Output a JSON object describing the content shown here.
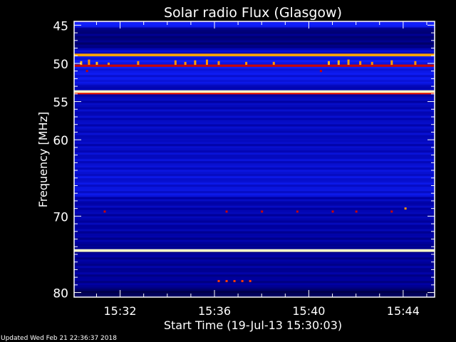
{
  "chart_data": {
    "type": "heatmap",
    "title": "Solar radio Flux (Glasgow)",
    "xlabel": "Start Time (19-Jul-13 15:30:03)",
    "ylabel": "Frequency [MHz]",
    "xlim": [
      "15:30:03",
      "15:45:20"
    ],
    "ylim": [
      80.6,
      44.5
    ],
    "x_ticks": [
      "15:32",
      "15:36",
      "15:40",
      "15:44"
    ],
    "y_ticks": [
      45,
      50,
      55,
      60,
      70,
      80
    ],
    "colormap": [
      "#000040",
      "#0000a0",
      "#1020ff",
      "#c00000",
      "#ff2000",
      "#ffa000",
      "#ffff60",
      "#ffffff"
    ],
    "background_levels": [
      {
        "from": 44.5,
        "to": 45.3,
        "level": 0.3
      },
      {
        "from": 45.3,
        "to": 48.0,
        "level": 0.12
      },
      {
        "from": 48.0,
        "to": 49.0,
        "level": 0.2
      },
      {
        "from": 49.0,
        "to": 52.3,
        "level": 0.22
      },
      {
        "from": 52.3,
        "to": 53.5,
        "level": 0.18
      },
      {
        "from": 53.5,
        "to": 60.0,
        "level": 0.16
      },
      {
        "from": 60.0,
        "to": 67.5,
        "level": 0.2
      },
      {
        "from": 67.5,
        "to": 74.0,
        "level": 0.14
      },
      {
        "from": 74.0,
        "to": 79.5,
        "level": 0.1
      },
      {
        "from": 79.5,
        "to": 80.6,
        "level": 0.05
      }
    ],
    "bands": [
      {
        "freq": 44.8,
        "width": 0.3,
        "level": 0.28
      },
      {
        "freq": 48.9,
        "width": 0.35,
        "level": 0.72
      },
      {
        "freq": 50.3,
        "width": 0.3,
        "level": 0.45
      },
      {
        "freq": 52.5,
        "width": 0.3,
        "level": 0.25
      },
      {
        "freq": 53.7,
        "width": 0.35,
        "level": 0.95
      },
      {
        "freq": 53.95,
        "width": 0.2,
        "level": 0.5
      },
      {
        "freq": 74.5,
        "width": 0.35,
        "level": 0.95
      }
    ],
    "bursts": [
      {
        "time": "15:30:20",
        "freq": 49.7,
        "level": 0.75
      },
      {
        "time": "15:30:40",
        "freq": 49.5,
        "level": 0.7
      },
      {
        "time": "15:31:00",
        "freq": 49.8,
        "level": 0.75
      },
      {
        "time": "15:31:30",
        "freq": 49.9,
        "level": 0.7
      },
      {
        "time": "15:32:45",
        "freq": 49.7,
        "level": 0.7
      },
      {
        "time": "15:34:20",
        "freq": 49.6,
        "level": 0.7
      },
      {
        "time": "15:34:45",
        "freq": 49.8,
        "level": 0.7
      },
      {
        "time": "15:35:10",
        "freq": 49.6,
        "level": 0.72
      },
      {
        "time": "15:35:40",
        "freq": 49.5,
        "level": 0.7
      },
      {
        "time": "15:36:10",
        "freq": 49.7,
        "level": 0.7
      },
      {
        "time": "15:37:20",
        "freq": 49.8,
        "level": 0.7
      },
      {
        "time": "15:38:30",
        "freq": 49.8,
        "level": 0.7
      },
      {
        "time": "15:40:50",
        "freq": 49.7,
        "level": 0.75
      },
      {
        "time": "15:41:15",
        "freq": 49.6,
        "level": 0.75
      },
      {
        "time": "15:41:40",
        "freq": 49.5,
        "level": 0.72
      },
      {
        "time": "15:42:10",
        "freq": 49.7,
        "level": 0.7
      },
      {
        "time": "15:42:40",
        "freq": 49.8,
        "level": 0.7
      },
      {
        "time": "15:43:30",
        "freq": 49.6,
        "level": 0.72
      },
      {
        "time": "15:44:30",
        "freq": 49.7,
        "level": 0.7
      },
      {
        "time": "15:30:35",
        "freq": 51.0,
        "level": 0.45
      },
      {
        "time": "15:40:30",
        "freq": 51.0,
        "level": 0.45
      },
      {
        "time": "15:31:20",
        "freq": 69.4,
        "level": 0.45
      },
      {
        "time": "15:36:30",
        "freq": 69.4,
        "level": 0.45
      },
      {
        "time": "15:38:00",
        "freq": 69.4,
        "level": 0.45
      },
      {
        "time": "15:39:30",
        "freq": 69.4,
        "level": 0.45
      },
      {
        "time": "15:41:00",
        "freq": 69.4,
        "level": 0.45
      },
      {
        "time": "15:42:00",
        "freq": 69.4,
        "level": 0.45
      },
      {
        "time": "15:43:30",
        "freq": 69.4,
        "level": 0.45
      },
      {
        "time": "15:44:05",
        "freq": 69.0,
        "level": 0.7
      },
      {
        "time": "15:36:10",
        "freq": 78.5,
        "level": 0.6
      },
      {
        "time": "15:36:30",
        "freq": 78.5,
        "level": 0.6
      },
      {
        "time": "15:36:50",
        "freq": 78.5,
        "level": 0.6
      },
      {
        "time": "15:37:10",
        "freq": 78.5,
        "level": 0.6
      },
      {
        "time": "15:37:30",
        "freq": 78.5,
        "level": 0.6
      }
    ]
  },
  "footer": {
    "updated": "Updated Wed Feb 21 22:36:37 2018"
  }
}
